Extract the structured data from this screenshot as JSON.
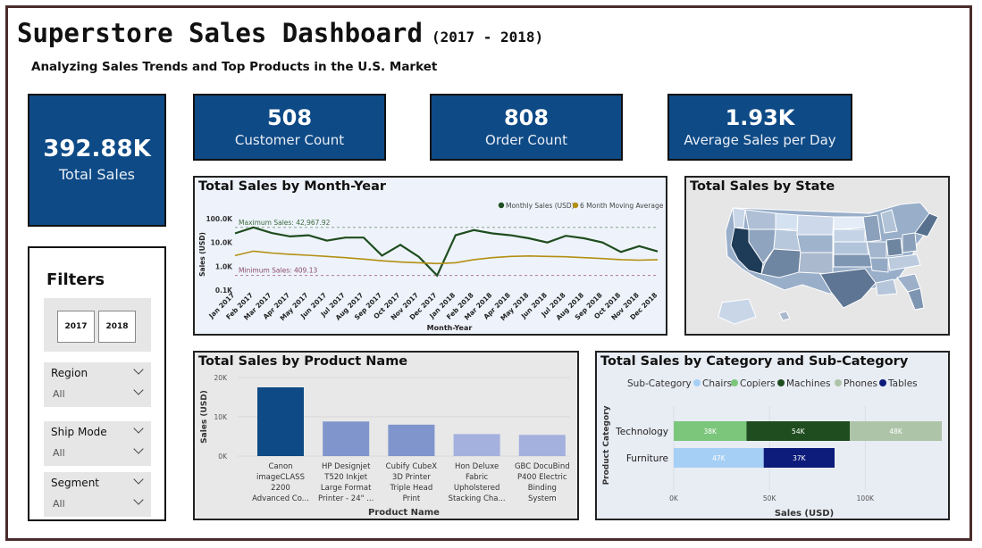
{
  "header": {
    "title": "Superstore Sales Dashboard",
    "year_range": "(2017 - 2018)",
    "subtitle": "Analyzing Sales Trends and Top Products in the U.S. Market"
  },
  "kpis": {
    "total_sales": {
      "value": "392.88K",
      "label": "Total Sales"
    },
    "customer_count": {
      "value": "508",
      "label": "Customer Count"
    },
    "order_count": {
      "value": "808",
      "label": "Order Count"
    },
    "avg_sales_day": {
      "value": "1.93K",
      "label": "Average Sales per Day"
    }
  },
  "filters": {
    "title": "Filters",
    "years": [
      "2017",
      "2018"
    ],
    "region": {
      "label": "Region",
      "value": "All"
    },
    "ship_mode": {
      "label": "Ship Mode",
      "value": "All"
    },
    "segment": {
      "label": "Segment",
      "value": "All"
    }
  },
  "colors": {
    "kpi": "#0e4a86",
    "monthly": "#1f4d1f",
    "moving_avg": "#b38f12",
    "bar_top": "#0e4a86",
    "bar_other": "#8095cc",
    "chairs": "#a5cff5",
    "copiers": "#7bc67b",
    "machines": "#1f4d1f",
    "phones": "#adc4a8",
    "tables": "#0d1b7a"
  },
  "map": {
    "title": "Total Sales by State"
  },
  "chart_data": [
    {
      "type": "line",
      "title": "Total Sales by Month-Year",
      "xlabel": "Month-Year",
      "ylabel": "Sales (USD)",
      "yscale": "log",
      "ylim": [
        100,
        100000
      ],
      "yticks": [
        "0.1K",
        "1.0K",
        "10.0K",
        "100.0K"
      ],
      "legend_position": "top-right",
      "x": [
        "Jan 2017",
        "Feb 2017",
        "Mar 2017",
        "Apr 2017",
        "May 2017",
        "Jun 2017",
        "Jul 2017",
        "Aug 2017",
        "Sep 2017",
        "Oct 2017",
        "Nov 2017",
        "Dec 2017",
        "Jan 2018",
        "Feb 2018",
        "Mar 2018",
        "Apr 2018",
        "May 2018",
        "Jun 2018",
        "Jul 2018",
        "Aug 2018",
        "Sep 2018",
        "Oct 2018",
        "Nov 2018",
        "Dec 2018"
      ],
      "series": [
        {
          "name": "Monthly Sales (USD)",
          "values": [
            24000,
            42967.92,
            25000,
            18000,
            20000,
            12000,
            16000,
            16000,
            2800,
            8000,
            2500,
            409.13,
            20000,
            33000,
            24000,
            20000,
            15000,
            10000,
            19000,
            15000,
            10000,
            4000,
            7000,
            4200
          ]
        },
        {
          "name": "6 Month Moving Average",
          "values": [
            2800,
            4300,
            3600,
            3200,
            2900,
            2600,
            2300,
            2000,
            1700,
            1500,
            1400,
            1300,
            1400,
            1900,
            2300,
            2600,
            2700,
            2600,
            2500,
            2300,
            2100,
            1900,
            1800,
            1900
          ]
        }
      ],
      "annotations": [
        {
          "label": "Maximum Sales: 42,967.92",
          "value": 42967.92
        },
        {
          "label": "Minimum Sales: 409.13",
          "value": 409.13
        }
      ]
    },
    {
      "type": "bar",
      "title": "Total Sales by Product Name",
      "xlabel": "Product Name",
      "ylabel": "Sales (USD)",
      "ylim": [
        0,
        20000
      ],
      "yticks": [
        "0K",
        "10K",
        "20K"
      ],
      "categories": [
        [
          "Canon",
          "imageCLASS",
          "2200",
          "Advanced Co..."
        ],
        [
          "HP Designjet",
          "T520 Inkjet",
          "Large Format",
          "Printer - 24\" ..."
        ],
        [
          "Cubify CubeX",
          "3D Printer",
          "Triple Head",
          "Print"
        ],
        [
          "Hon Deluxe",
          "Fabric",
          "Upholstered",
          "Stacking Cha..."
        ],
        [
          "GBC DocuBind",
          "P400 Electric",
          "Binding",
          "System"
        ]
      ],
      "values": [
        17500,
        8800,
        8000,
        5600,
        5400
      ]
    },
    {
      "type": "bar",
      "orientation": "horizontal",
      "stacked": true,
      "title": "Total Sales by Category and Sub-Category",
      "xlabel": "Sales (USD)",
      "ylabel": "Product Category",
      "legend_title": "Sub-Category",
      "legend_position": "top",
      "xlim": [
        0,
        140000
      ],
      "xticks": [
        "0K",
        "50K",
        "100K"
      ],
      "categories": [
        "Technology",
        "Furniture"
      ],
      "series": [
        {
          "name": "Chairs",
          "values": [
            0,
            47000
          ],
          "labels": [
            "",
            "47K"
          ]
        },
        {
          "name": "Copiers",
          "values": [
            38000,
            0
          ],
          "labels": [
            "38K",
            ""
          ]
        },
        {
          "name": "Machines",
          "values": [
            54000,
            0
          ],
          "labels": [
            "54K",
            ""
          ]
        },
        {
          "name": "Phones",
          "values": [
            48000,
            0
          ],
          "labels": [
            "48K",
            ""
          ]
        },
        {
          "name": "Tables",
          "values": [
            0,
            37000
          ],
          "labels": [
            "",
            "37K"
          ]
        }
      ]
    }
  ]
}
